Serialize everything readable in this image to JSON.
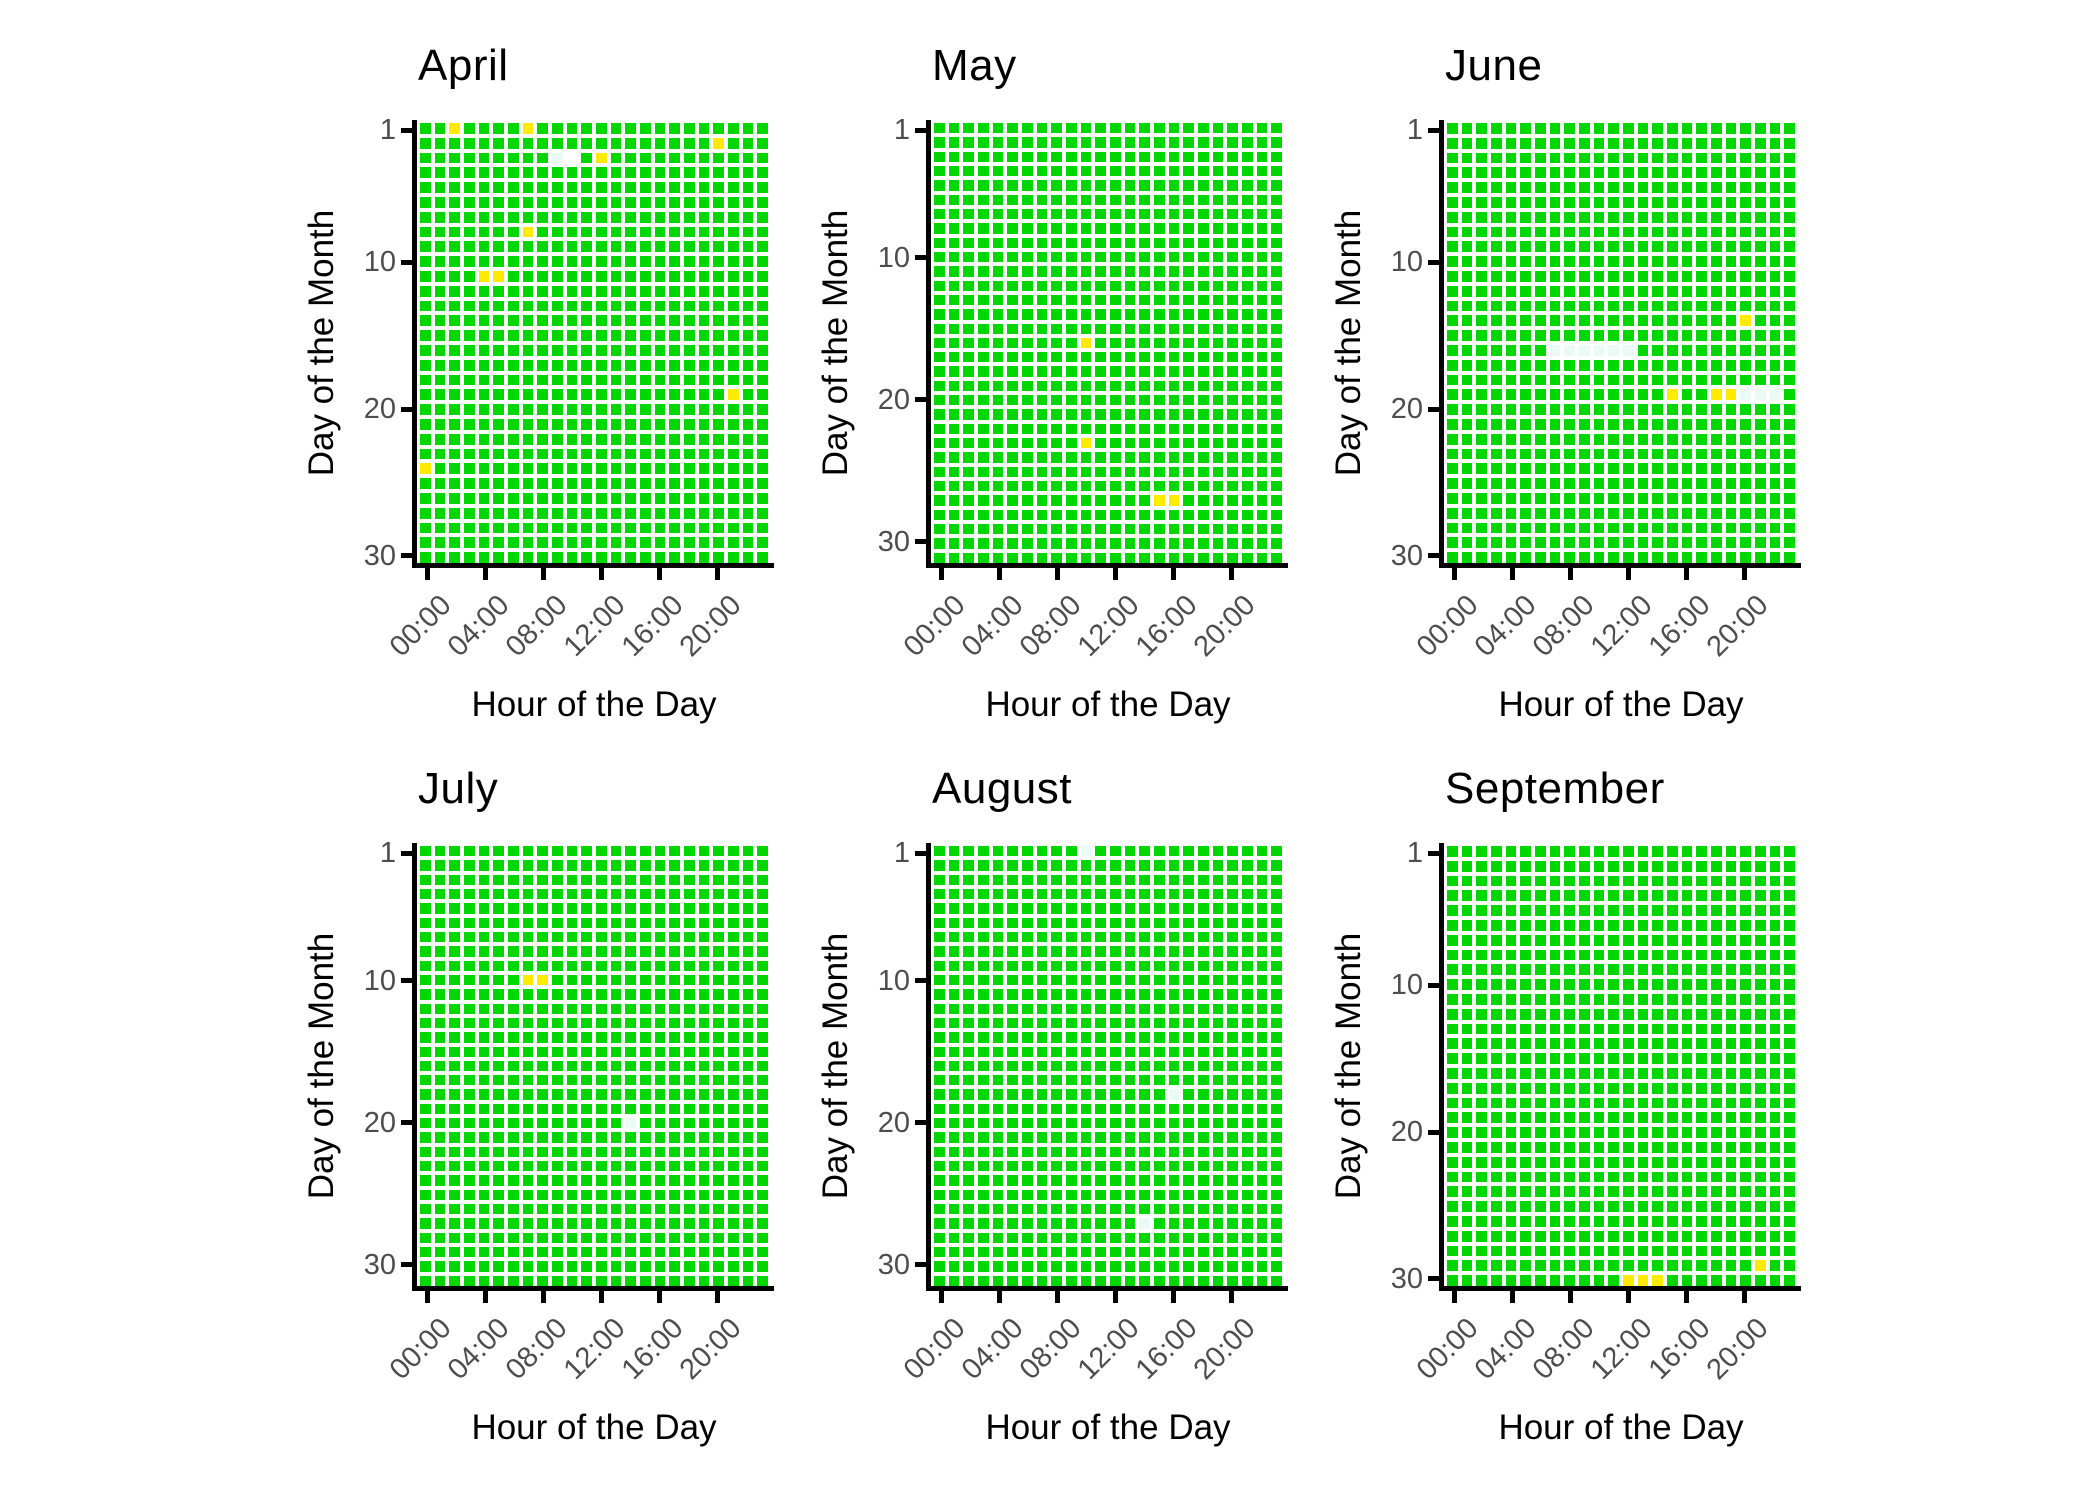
{
  "chart_data": {
    "type": "heatmap",
    "description": "Calendar availability heatmaps: hour-of-day vs day-of-month tiles for six months; green tiles with sparse yellow, pale and missing cells",
    "xlabel": "Hour of the Day",
    "ylabel": "Day of the Month",
    "x_tick_labels": [
      "00:00",
      "04:00",
      "08:00",
      "12:00",
      "16:00",
      "20:00"
    ],
    "x_tick_hours": [
      0,
      4,
      8,
      12,
      16,
      20
    ],
    "y_tick_days": [
      1,
      10,
      20,
      30
    ],
    "hours_per_day": 24,
    "cell_default": "green",
    "colors": {
      "green": "#00D600",
      "yellow": "#FFEB00",
      "pale": "#E9FBF4",
      "background": "#FFFFFF",
      "axis_line": "#000000",
      "tick_text": "#4D4D4D",
      "title_text": "#000000"
    },
    "facets": [
      {
        "title": "April",
        "days": 30,
        "yellow_cells": [
          [
            1,
            2
          ],
          [
            1,
            7
          ],
          [
            2,
            20
          ],
          [
            3,
            12
          ],
          [
            8,
            7
          ],
          [
            11,
            4
          ],
          [
            11,
            5
          ],
          [
            19,
            21
          ],
          [
            24,
            0
          ]
        ],
        "pale_cells": [
          [
            3,
            9
          ]
        ],
        "missing_cells": [
          [
            3,
            10
          ]
        ]
      },
      {
        "title": "May",
        "days": 31,
        "yellow_cells": [
          [
            16,
            10
          ],
          [
            23,
            10
          ],
          [
            27,
            15
          ],
          [
            27,
            16
          ]
        ],
        "pale_cells": [],
        "missing_cells": []
      },
      {
        "title": "June",
        "days": 30,
        "yellow_cells": [
          [
            14,
            20
          ],
          [
            19,
            15
          ],
          [
            19,
            18
          ],
          [
            19,
            19
          ]
        ],
        "pale_cells": [
          [
            16,
            7
          ],
          [
            16,
            8
          ],
          [
            16,
            9
          ],
          [
            16,
            10
          ],
          [
            16,
            11
          ],
          [
            16,
            12
          ],
          [
            19,
            20
          ],
          [
            19,
            21
          ],
          [
            19,
            22
          ]
        ],
        "missing_cells": []
      },
      {
        "title": "July",
        "days": 31,
        "yellow_cells": [
          [
            10,
            7
          ],
          [
            10,
            8
          ]
        ],
        "pale_cells": [
          [
            20,
            14
          ]
        ],
        "missing_cells": []
      },
      {
        "title": "August",
        "days": 31,
        "yellow_cells": [],
        "pale_cells": [
          [
            1,
            10
          ],
          [
            18,
            16
          ],
          [
            27,
            14
          ]
        ],
        "missing_cells": []
      },
      {
        "title": "September",
        "days": 30,
        "yellow_cells": [
          [
            29,
            21
          ],
          [
            30,
            12
          ],
          [
            30,
            13
          ],
          [
            30,
            14
          ]
        ],
        "pale_cells": [],
        "missing_cells": []
      }
    ]
  }
}
